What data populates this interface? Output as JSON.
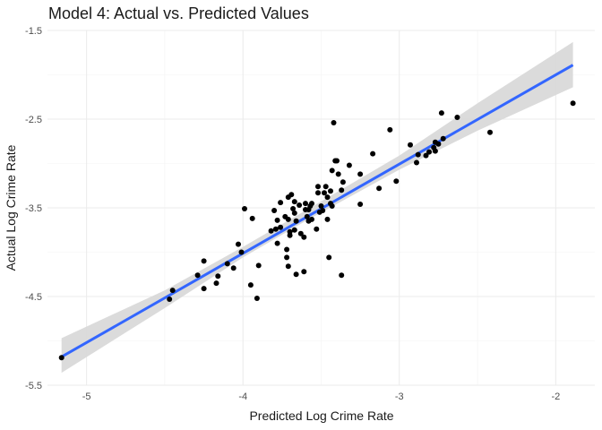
{
  "chart_data": {
    "type": "scatter",
    "title": "Model 4: Actual vs. Predicted Values",
    "xlabel": "Predicted Log Crime Rate",
    "ylabel": "Actual Log Crime Rate",
    "xlim": [
      -5.25,
      -1.75
    ],
    "ylim": [
      -5.5,
      -1.5
    ],
    "x_ticks": [
      -5,
      -4,
      -3,
      -2
    ],
    "x_tick_labels": [
      "-5",
      "-4",
      "-3",
      "-2"
    ],
    "y_ticks": [
      -1.5,
      -2.5,
      -3.5,
      -4.5,
      -5.5
    ],
    "y_tick_labels": [
      "-1.5",
      "-2.5",
      "-3.5",
      "-4.5",
      "-5.5"
    ],
    "grid": true,
    "colors": {
      "points": "#000000",
      "fit_line": "#3366ff",
      "confidence_band": "#d9d9d9",
      "grid": "#ebebeb"
    },
    "points": [
      [
        -5.16,
        -5.19
      ],
      [
        -4.47,
        -4.53
      ],
      [
        -4.45,
        -4.43
      ],
      [
        -4.29,
        -4.26
      ],
      [
        -4.25,
        -4.41
      ],
      [
        -4.25,
        -4.1
      ],
      [
        -4.17,
        -4.35
      ],
      [
        -4.16,
        -4.27
      ],
      [
        -4.1,
        -4.13
      ],
      [
        -4.06,
        -4.18
      ],
      [
        -4.03,
        -3.91
      ],
      [
        -4.01,
        -4.0
      ],
      [
        -3.99,
        -3.51
      ],
      [
        -3.95,
        -4.37
      ],
      [
        -3.94,
        -3.62
      ],
      [
        -3.91,
        -4.52
      ],
      [
        -3.9,
        -4.15
      ],
      [
        -3.82,
        -3.76
      ],
      [
        -3.8,
        -3.53
      ],
      [
        -3.79,
        -3.74
      ],
      [
        -3.78,
        -3.64
      ],
      [
        -3.78,
        -3.9
      ],
      [
        -3.76,
        -3.72
      ],
      [
        -3.76,
        -3.44
      ],
      [
        -3.73,
        -3.6
      ],
      [
        -3.72,
        -4.06
      ],
      [
        -3.72,
        -3.97
      ],
      [
        -3.71,
        -3.38
      ],
      [
        -3.71,
        -3.63
      ],
      [
        -3.71,
        -4.16
      ],
      [
        -3.7,
        -3.77
      ],
      [
        -3.7,
        -3.81
      ],
      [
        -3.69,
        -3.35
      ],
      [
        -3.68,
        -3.51
      ],
      [
        -3.67,
        -3.56
      ],
      [
        -3.67,
        -3.43
      ],
      [
        -3.67,
        -3.75
      ],
      [
        -3.66,
        -3.65
      ],
      [
        -3.66,
        -4.25
      ],
      [
        -3.64,
        -3.47
      ],
      [
        -3.63,
        -3.79
      ],
      [
        -3.61,
        -4.22
      ],
      [
        -3.61,
        -3.83
      ],
      [
        -3.6,
        -3.45
      ],
      [
        -3.6,
        -3.52
      ],
      [
        -3.59,
        -3.6
      ],
      [
        -3.58,
        -3.65
      ],
      [
        -3.58,
        -3.52
      ],
      [
        -3.57,
        -3.48
      ],
      [
        -3.56,
        -3.45
      ],
      [
        -3.56,
        -3.63
      ],
      [
        -3.53,
        -3.74
      ],
      [
        -3.52,
        -3.26
      ],
      [
        -3.52,
        -3.33
      ],
      [
        -3.51,
        -3.55
      ],
      [
        -3.5,
        -3.48
      ],
      [
        -3.49,
        -3.53
      ],
      [
        -3.48,
        -3.33
      ],
      [
        -3.47,
        -3.26
      ],
      [
        -3.46,
        -3.38
      ],
      [
        -3.46,
        -3.63
      ],
      [
        -3.45,
        -4.06
      ],
      [
        -3.44,
        -3.31
      ],
      [
        -3.44,
        -3.45
      ],
      [
        -3.43,
        -3.08
      ],
      [
        -3.43,
        -3.48
      ],
      [
        -3.42,
        -2.54
      ],
      [
        -3.41,
        -2.97
      ],
      [
        -3.4,
        -2.97
      ],
      [
        -3.39,
        -3.12
      ],
      [
        -3.37,
        -4.26
      ],
      [
        -3.37,
        -3.3
      ],
      [
        -3.36,
        -3.21
      ],
      [
        -3.32,
        -3.02
      ],
      [
        -3.25,
        -3.12
      ],
      [
        -3.25,
        -3.46
      ],
      [
        -3.17,
        -2.89
      ],
      [
        -3.13,
        -3.28
      ],
      [
        -3.06,
        -2.62
      ],
      [
        -3.02,
        -3.2
      ],
      [
        -2.93,
        -2.79
      ],
      [
        -2.89,
        -2.99
      ],
      [
        -2.88,
        -2.9
      ],
      [
        -2.83,
        -2.91
      ],
      [
        -2.81,
        -2.87
      ],
      [
        -2.78,
        -2.82
      ],
      [
        -2.77,
        -2.76
      ],
      [
        -2.77,
        -2.86
      ],
      [
        -2.75,
        -2.78
      ],
      [
        -2.73,
        -2.43
      ],
      [
        -2.72,
        -2.72
      ],
      [
        -2.63,
        -2.48
      ],
      [
        -2.42,
        -2.65
      ],
      [
        -1.89,
        -2.32
      ]
    ],
    "fit_line": {
      "x_start": -5.16,
      "x_end": -1.89,
      "y_start": -5.18,
      "y_end": -1.89
    },
    "confidence_band": {
      "x": [
        -5.16,
        -4.5,
        -4.0,
        -3.6,
        -3.0,
        -2.5,
        -1.89
      ],
      "lower": [
        -5.36,
        -4.63,
        -4.06,
        -3.65,
        -3.07,
        -2.63,
        -2.14
      ],
      "upper": [
        -4.97,
        -4.43,
        -3.94,
        -3.53,
        -2.91,
        -2.32,
        -1.63
      ]
    }
  }
}
